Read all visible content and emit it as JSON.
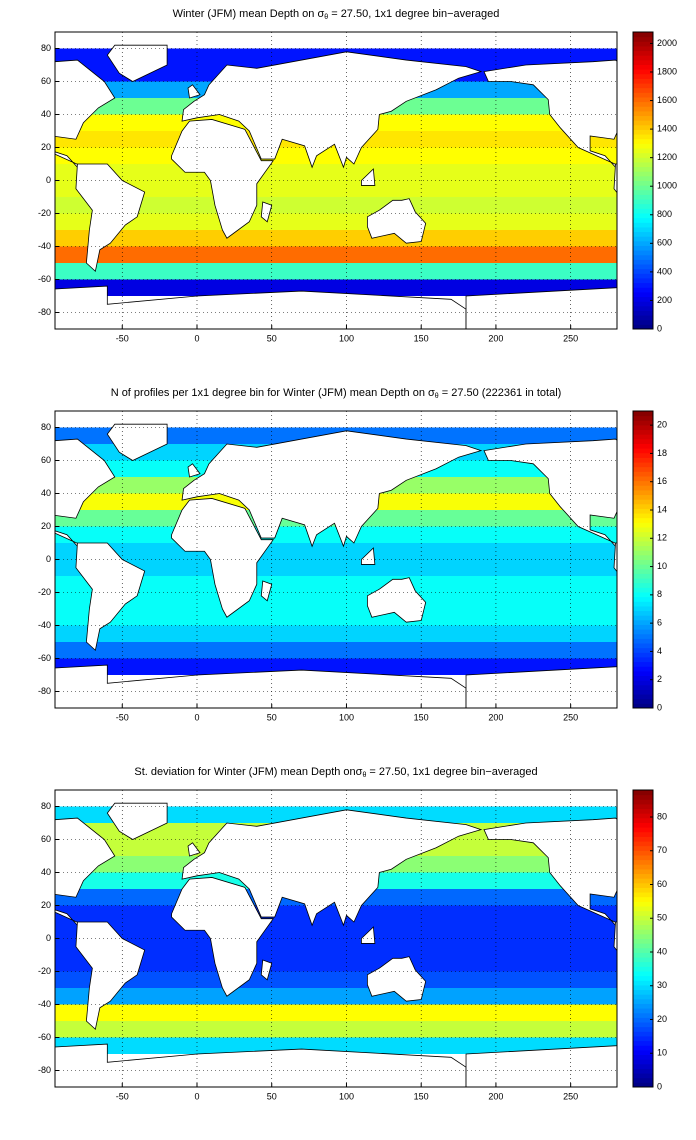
{
  "chart_data": [
    {
      "type": "heatmap",
      "title": "Winter (JFM) mean Depth on σ",
      "title_sub": "θ",
      "title_end": " = 27.50, 1x1 degree bin−averaged",
      "lat": [
        85,
        75,
        65,
        55,
        45,
        35,
        25,
        15,
        5,
        -5,
        -15,
        -25,
        -35,
        -45,
        -55,
        -65,
        -75,
        -85
      ],
      "values": [
        null,
        300,
        300,
        600,
        1000,
        1300,
        1350,
        1300,
        1250,
        1250,
        1200,
        1250,
        1400,
        1600,
        900,
        200,
        null,
        null
      ],
      "xlim": [
        -95,
        281
      ],
      "xticks": [
        -50,
        0,
        50,
        100,
        150,
        200,
        250
      ],
      "ylim": [
        -90,
        90
      ],
      "yticks": [
        -80,
        -60,
        -40,
        -20,
        0,
        20,
        40,
        60,
        80
      ],
      "clim": [
        0,
        2080
      ],
      "cticks": [
        0,
        200,
        400,
        600,
        800,
        1000,
        1200,
        1400,
        1600,
        1800,
        2000
      ],
      "colormap": "jet",
      "grid": true
    },
    {
      "type": "heatmap",
      "title": "N of profiles per 1x1 degree bin for Winter (JFM) mean Depth on σ",
      "title_sub": "θ",
      "title_end": " = 27.50 (222361 in total)",
      "lat": [
        85,
        75,
        65,
        55,
        45,
        35,
        25,
        15,
        5,
        -5,
        -15,
        -25,
        -35,
        -45,
        -55,
        -65,
        -75,
        -85
      ],
      "values": [
        null,
        5,
        7,
        8,
        11,
        13,
        10,
        8,
        7,
        7,
        8,
        8,
        8,
        7,
        5,
        3,
        null,
        null
      ],
      "xlim": [
        -95,
        281
      ],
      "xticks": [
        -50,
        0,
        50,
        100,
        150,
        200,
        250
      ],
      "ylim": [
        -90,
        90
      ],
      "yticks": [
        -80,
        -60,
        -40,
        -20,
        0,
        20,
        40,
        60,
        80
      ],
      "clim": [
        0,
        21
      ],
      "cticks": [
        0,
        2,
        4,
        6,
        8,
        10,
        12,
        14,
        16,
        18,
        20
      ],
      "colormap": "jet",
      "grid": true
    },
    {
      "type": "heatmap",
      "title": "St. deviation for Winter (JFM) mean Depth onσ",
      "title_sub": "θ",
      "title_end": " = 27.50, 1x1 degree bin−averaged",
      "lat": [
        85,
        75,
        65,
        55,
        45,
        35,
        25,
        15,
        5,
        -5,
        -15,
        -25,
        -35,
        -45,
        -55,
        -65,
        -75,
        -85
      ],
      "values": [
        null,
        30,
        50,
        50,
        45,
        35,
        20,
        15,
        15,
        15,
        15,
        18,
        25,
        55,
        50,
        30,
        null,
        null
      ],
      "xlim": [
        -95,
        281
      ],
      "xticks": [
        -50,
        0,
        50,
        100,
        150,
        200,
        250
      ],
      "ylim": [
        -90,
        90
      ],
      "yticks": [
        -80,
        -60,
        -40,
        -20,
        0,
        20,
        40,
        60,
        80
      ],
      "clim": [
        0,
        88
      ],
      "cticks": [
        0,
        10,
        20,
        30,
        40,
        50,
        60,
        70,
        80
      ],
      "colormap": "jet",
      "grid": true
    }
  ]
}
